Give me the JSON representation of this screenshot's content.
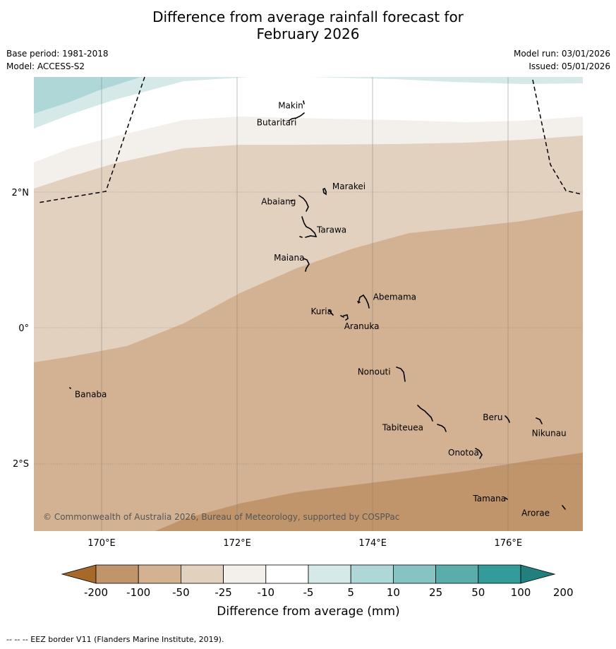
{
  "title_line1": "Difference from average rainfall forecast for",
  "title_line2": "February 2026",
  "meta": {
    "base_period": "Base period: 1981-2018",
    "model": "Model: ACCESS-S2",
    "model_run": "Model run: 03/01/2026",
    "issued": "Issued: 05/01/2026"
  },
  "map": {
    "lon_range": [
      169,
      177.1
    ],
    "lat_range": [
      -3.0,
      3.7
    ],
    "lon_ticks": [
      {
        "value": 170,
        "label": "170°E"
      },
      {
        "value": 172,
        "label": "172°E"
      },
      {
        "value": 174,
        "label": "174°E"
      },
      {
        "value": 176,
        "label": "176°E"
      }
    ],
    "lat_ticks": [
      {
        "value": 2,
        "label": "2°N"
      },
      {
        "value": 0,
        "label": "0°"
      },
      {
        "value": -2,
        "label": "2°S"
      }
    ],
    "places": [
      {
        "name": "Makin",
        "lon": 173.0,
        "lat": 3.28
      },
      {
        "name": "Butaritari",
        "lon": 172.85,
        "lat": 3.05
      },
      {
        "name": "Marakei",
        "lon": 173.32,
        "lat": 2.0
      },
      {
        "name": "Abaiang",
        "lon": 172.98,
        "lat": 1.82
      },
      {
        "name": "Tarawa",
        "lon": 173.05,
        "lat": 1.4
      },
      {
        "name": "Maiana",
        "lon": 173.02,
        "lat": 0.95
      },
      {
        "name": "Abemama",
        "lon": 173.88,
        "lat": 0.37
      },
      {
        "name": "Kuria",
        "lon": 173.42,
        "lat": 0.22
      },
      {
        "name": "Aranuka",
        "lon": 173.62,
        "lat": 0.17
      },
      {
        "name": "Nonouti",
        "lon": 174.4,
        "lat": -0.67
      },
      {
        "name": "Banaba",
        "lon": 169.54,
        "lat": -0.88
      },
      {
        "name": "Tabiteuea",
        "lon": 174.85,
        "lat": -1.35
      },
      {
        "name": "Beru",
        "lon": 176.0,
        "lat": -1.32
      },
      {
        "name": "Nikunau",
        "lon": 176.45,
        "lat": -1.37
      },
      {
        "name": "Onotoa",
        "lon": 175.57,
        "lat": -1.82
      },
      {
        "name": "Tamana",
        "lon": 175.98,
        "lat": -2.5
      },
      {
        "name": "Arorae",
        "lon": 176.82,
        "lat": -2.65
      }
    ],
    "copyright": "© Commonwealth of Australia 2026, Bureau of Meteorology, supported by COSPPac"
  },
  "colors": {
    "c_lt_m200": "#a6692a",
    "c_m200_m100": "#c0956b",
    "c_m100_m50": "#d2b292",
    "c_m50_m25": "#e3d1c0",
    "c_m25_m10": "#f3efea",
    "c_m10_5": "#ffffff",
    "c_5_10": "#d5e9e9",
    "c_10_25": "#b0d7d7",
    "c_25_50": "#86c3c2",
    "c_50_100": "#5aadab",
    "c_100_200": "#339b99",
    "c_gt_200": "#227f7d"
  },
  "legend": {
    "ticks": [
      "-200",
      "-100",
      "-50",
      "-25",
      "-10",
      "-5",
      "5",
      "10",
      "25",
      "50",
      "100",
      "200"
    ],
    "label": "Difference from average (mm)"
  },
  "footnote": "--  --  -- EEZ border V11 (Flanders Marine Institute, 2019)."
}
